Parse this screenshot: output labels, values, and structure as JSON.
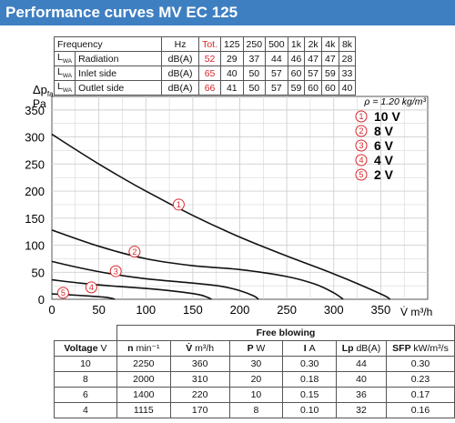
{
  "title": "Performance curves MV EC 125",
  "sound_table": {
    "header": [
      "Frequency",
      "Hz",
      "Tot.",
      "125",
      "250",
      "500",
      "1k",
      "2k",
      "4k",
      "8k"
    ],
    "rows": [
      {
        "lwa": "L",
        "lwa_sub": "WA",
        "label": "Radiation",
        "unit": "dB(A)",
        "values": [
          "52",
          "29",
          "37",
          "44",
          "46",
          "47",
          "47",
          "28"
        ]
      },
      {
        "lwa": "L",
        "lwa_sub": "WA",
        "label": "Inlet side",
        "unit": "dB(A)",
        "values": [
          "65",
          "40",
          "50",
          "57",
          "60",
          "57",
          "59",
          "33"
        ]
      },
      {
        "lwa": "L",
        "lwa_sub": "WA",
        "label": "Outlet side",
        "unit": "dB(A)",
        "values": [
          "66",
          "41",
          "50",
          "57",
          "59",
          "60",
          "60",
          "40"
        ]
      }
    ]
  },
  "chart_data": {
    "type": "line",
    "ylabel_line1": "Δp",
    "ylabel_sub": "fa",
    "ylabel_unit": "Pa",
    "xlabel": "V̇  m³/h",
    "density_note": "ρ = 1.20 kg/m³",
    "xlim": [
      0,
      400
    ],
    "ylim": [
      0,
      375
    ],
    "x_ticks": [
      0,
      50,
      100,
      150,
      200,
      250,
      300,
      350
    ],
    "y_ticks": [
      0,
      50,
      100,
      150,
      200,
      250,
      300,
      350
    ],
    "series": [
      {
        "marker": "1",
        "name": "10 V",
        "label_x": 135,
        "label_y": 175,
        "points": [
          [
            0,
            305
          ],
          [
            50,
            250
          ],
          [
            100,
            200
          ],
          [
            150,
            155
          ],
          [
            200,
            115
          ],
          [
            250,
            80
          ],
          [
            300,
            47
          ],
          [
            350,
            10
          ],
          [
            360,
            0
          ]
        ]
      },
      {
        "marker": "2",
        "name": "8 V",
        "label_x": 88,
        "label_y": 88,
        "points": [
          [
            0,
            128
          ],
          [
            50,
            98
          ],
          [
            100,
            75
          ],
          [
            150,
            62
          ],
          [
            200,
            55
          ],
          [
            250,
            42
          ],
          [
            280,
            28
          ],
          [
            300,
            12
          ],
          [
            310,
            0
          ]
        ]
      },
      {
        "marker": "3",
        "name": "6 V",
        "label_x": 68,
        "label_y": 52,
        "points": [
          [
            0,
            70
          ],
          [
            30,
            58
          ],
          [
            60,
            48
          ],
          [
            100,
            38
          ],
          [
            150,
            30
          ],
          [
            180,
            24
          ],
          [
            200,
            16
          ],
          [
            215,
            6
          ],
          [
            220,
            0
          ]
        ]
      },
      {
        "marker": "4",
        "name": "4 V",
        "label_x": 42,
        "label_y": 22,
        "points": [
          [
            0,
            36
          ],
          [
            30,
            30
          ],
          [
            60,
            25
          ],
          [
            100,
            20
          ],
          [
            130,
            15
          ],
          [
            155,
            9
          ],
          [
            165,
            4
          ],
          [
            170,
            0
          ]
        ]
      },
      {
        "marker": "5",
        "name": "2 V",
        "label_x": 12,
        "label_y": 12,
        "points": [
          [
            0,
            10
          ],
          [
            20,
            8
          ],
          [
            40,
            6
          ],
          [
            55,
            4
          ],
          [
            63,
            2
          ],
          [
            67,
            0
          ]
        ]
      }
    ],
    "legend": [
      {
        "marker": "1",
        "label": "10 V"
      },
      {
        "marker": "2",
        "label": "8 V"
      },
      {
        "marker": "3",
        "label": "6 V"
      },
      {
        "marker": "4",
        "label": "4 V"
      },
      {
        "marker": "5",
        "label": "2 V"
      }
    ],
    "grid": true,
    "legend_position": "top-right"
  },
  "free_table": {
    "title": "Free blowing",
    "header": [
      {
        "name": "Voltage",
        "unit": "V"
      },
      {
        "name": "n",
        "unit": "min⁻¹"
      },
      {
        "name": "V̇",
        "unit": "m³/h"
      },
      {
        "name": "P",
        "unit": "W"
      },
      {
        "name": "I",
        "unit": "A"
      },
      {
        "name": "Lp",
        "unit": "dB(A)"
      },
      {
        "name": "SFP",
        "unit": "kW/m³/s"
      }
    ],
    "rows": [
      [
        "10",
        "2250",
        "360",
        "30",
        "0.30",
        "44",
        "0.30"
      ],
      [
        "8",
        "2000",
        "310",
        "20",
        "0.18",
        "40",
        "0.23"
      ],
      [
        "6",
        "1400",
        "220",
        "10",
        "0.15",
        "36",
        "0.17"
      ],
      [
        "4",
        "1115",
        "170",
        "8",
        "0.10",
        "32",
        "0.16"
      ]
    ]
  },
  "colors": {
    "title_bar": "#3e7fc1",
    "marker": "#d8262c",
    "curve": "#111111",
    "grid": "#cfcfcf"
  }
}
